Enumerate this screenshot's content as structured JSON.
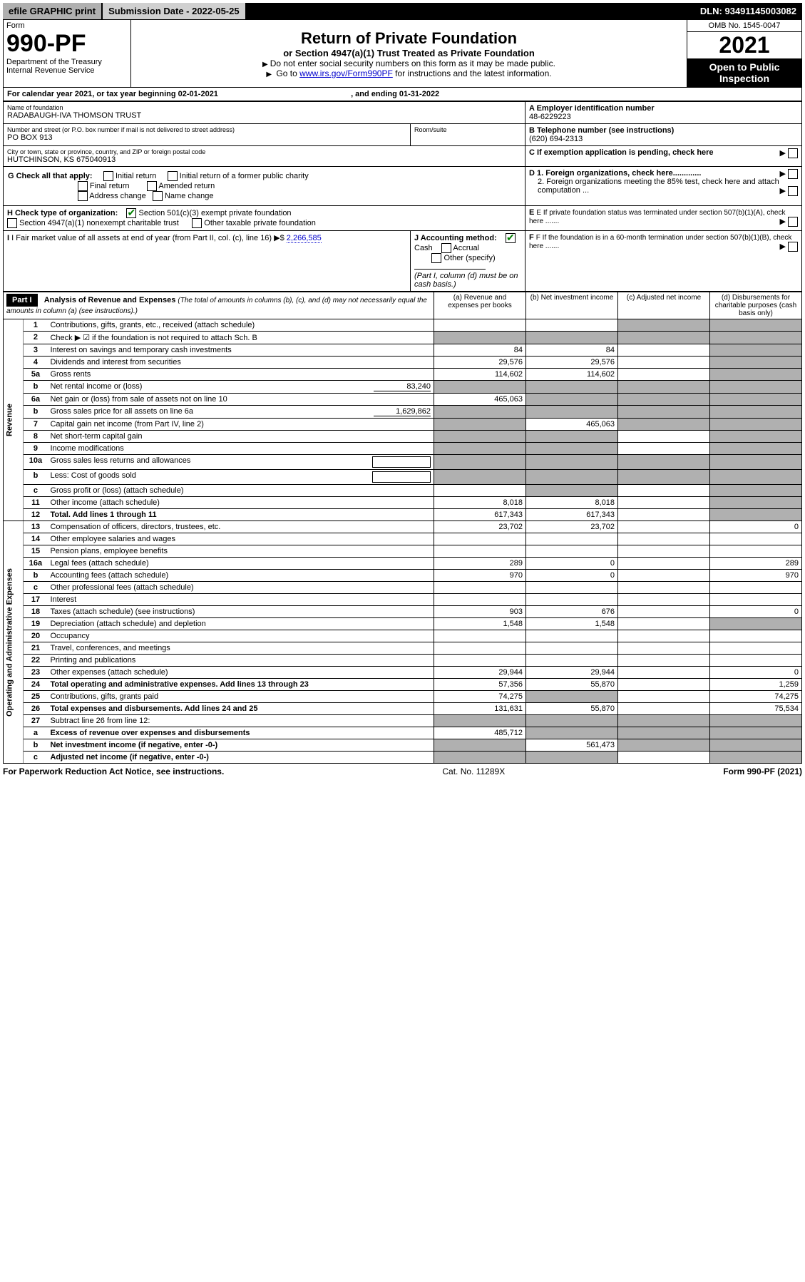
{
  "topbar": {
    "efile": "efile GRAPHIC print",
    "subdate_label": "Submission Date - 2022-05-25",
    "dln": "DLN: 93491145003082"
  },
  "header": {
    "form_label": "Form",
    "form_num": "990-PF",
    "dept": "Department of the Treasury",
    "irs": "Internal Revenue Service",
    "title": "Return of Private Foundation",
    "subtitle": "or Section 4947(a)(1) Trust Treated as Private Foundation",
    "instr1": "Do not enter social security numbers on this form as it may be made public.",
    "instr2_pre": "Go to ",
    "instr2_link": "www.irs.gov/Form990PF",
    "instr2_post": " for instructions and the latest information.",
    "omb": "OMB No. 1545-0047",
    "year": "2021",
    "open": "Open to Public Inspection"
  },
  "calendar": {
    "text_pre": "For calendar year 2021, or tax year beginning ",
    "begin": "02-01-2021",
    "text_mid": " , and ending ",
    "end": "01-31-2022"
  },
  "info": {
    "name_label": "Name of foundation",
    "name": "RADABAUGH-IVA THOMSON TRUST",
    "addr_label": "Number and street (or P.O. box number if mail is not delivered to street address)",
    "addr": "PO BOX 913",
    "room_label": "Room/suite",
    "city_label": "City or town, state or province, country, and ZIP or foreign postal code",
    "city": "HUTCHINSON, KS  675040913",
    "a_label": "A Employer identification number",
    "a_val": "48-6229223",
    "b_label": "B Telephone number (see instructions)",
    "b_val": "(620) 694-2313",
    "c_label": "C If exemption application is pending, check here",
    "d1_label": "D 1. Foreign organizations, check here.............",
    "d2_label": "2. Foreign organizations meeting the 85% test, check here and attach computation ...",
    "e_label": "E If private foundation status was terminated under section 507(b)(1)(A), check here .......",
    "f_label": "F If the foundation is in a 60-month termination under section 507(b)(1)(B), check here .......",
    "g_label": "G Check all that apply:",
    "g_opts": {
      "initial": "Initial return",
      "initial_former": "Initial return of a former public charity",
      "final": "Final return",
      "amended": "Amended return",
      "addr_change": "Address change",
      "name_change": "Name change"
    },
    "h_label": "H Check type of organization:",
    "h_opts": {
      "501c3": "Section 501(c)(3) exempt private foundation",
      "4947": "Section 4947(a)(1) nonexempt charitable trust",
      "other_tax": "Other taxable private foundation"
    },
    "i_label": "I Fair market value of all assets at end of year (from Part II, col. (c), line 16)",
    "i_val": "2,266,585",
    "j_label": "J Accounting method:",
    "j_cash": "Cash",
    "j_accrual": "Accrual",
    "j_other": "Other (specify)",
    "j_note": "(Part I, column (d) must be on cash basis.)"
  },
  "part1": {
    "label": "Part I",
    "title": "Analysis of Revenue and Expenses",
    "title_note": "(The total of amounts in columns (b), (c), and (d) may not necessarily equal the amounts in column (a) (see instructions).)",
    "col_a": "(a) Revenue and expenses per books",
    "col_b": "(b) Net investment income",
    "col_c": "(c) Adjusted net income",
    "col_d": "(d) Disbursements for charitable purposes (cash basis only)"
  },
  "sections": {
    "revenue": "Revenue",
    "expenses": "Operating and Administrative Expenses"
  },
  "rows": [
    {
      "n": "1",
      "desc": "Contributions, gifts, grants, etc., received (attach schedule)",
      "a": "",
      "b": "",
      "c": "shade",
      "d": "shade"
    },
    {
      "n": "2",
      "desc": "Check ▶ ☑ if the foundation is not required to attach Sch. B",
      "a": "shade",
      "b": "shade",
      "c": "shade",
      "d": "shade"
    },
    {
      "n": "3",
      "desc": "Interest on savings and temporary cash investments",
      "a": "84",
      "b": "84",
      "c": "",
      "d": "shade"
    },
    {
      "n": "4",
      "desc": "Dividends and interest from securities",
      "a": "29,576",
      "b": "29,576",
      "c": "",
      "d": "shade"
    },
    {
      "n": "5a",
      "desc": "Gross rents",
      "a": "114,602",
      "b": "114,602",
      "c": "",
      "d": "shade"
    },
    {
      "n": "b",
      "desc": "Net rental income or (loss)",
      "inline": "83,240",
      "a": "shade",
      "b": "shade",
      "c": "shade",
      "d": "shade"
    },
    {
      "n": "6a",
      "desc": "Net gain or (loss) from sale of assets not on line 10",
      "a": "465,063",
      "b": "shade",
      "c": "shade",
      "d": "shade"
    },
    {
      "n": "b",
      "desc": "Gross sales price for all assets on line 6a",
      "inline": "1,629,862",
      "a": "shade",
      "b": "shade",
      "c": "shade",
      "d": "shade"
    },
    {
      "n": "7",
      "desc": "Capital gain net income (from Part IV, line 2)",
      "a": "shade",
      "b": "465,063",
      "c": "shade",
      "d": "shade"
    },
    {
      "n": "8",
      "desc": "Net short-term capital gain",
      "a": "shade",
      "b": "shade",
      "c": "",
      "d": "shade"
    },
    {
      "n": "9",
      "desc": "Income modifications",
      "a": "shade",
      "b": "shade",
      "c": "",
      "d": "shade"
    },
    {
      "n": "10a",
      "desc": "Gross sales less returns and allowances",
      "inline_box": true,
      "a": "shade",
      "b": "shade",
      "c": "shade",
      "d": "shade"
    },
    {
      "n": "b",
      "desc": "Less: Cost of goods sold",
      "inline_box": true,
      "a": "shade",
      "b": "shade",
      "c": "shade",
      "d": "shade"
    },
    {
      "n": "c",
      "desc": "Gross profit or (loss) (attach schedule)",
      "a": "",
      "b": "shade",
      "c": "",
      "d": "shade"
    },
    {
      "n": "11",
      "desc": "Other income (attach schedule)",
      "a": "8,018",
      "b": "8,018",
      "c": "",
      "d": "shade"
    },
    {
      "n": "12",
      "desc": "Total. Add lines 1 through 11",
      "bold": true,
      "a": "617,343",
      "b": "617,343",
      "c": "",
      "d": "shade"
    },
    {
      "n": "13",
      "desc": "Compensation of officers, directors, trustees, etc.",
      "a": "23,702",
      "b": "23,702",
      "c": "",
      "d": "0"
    },
    {
      "n": "14",
      "desc": "Other employee salaries and wages",
      "a": "",
      "b": "",
      "c": "",
      "d": ""
    },
    {
      "n": "15",
      "desc": "Pension plans, employee benefits",
      "a": "",
      "b": "",
      "c": "",
      "d": ""
    },
    {
      "n": "16a",
      "desc": "Legal fees (attach schedule)",
      "a": "289",
      "b": "0",
      "c": "",
      "d": "289"
    },
    {
      "n": "b",
      "desc": "Accounting fees (attach schedule)",
      "a": "970",
      "b": "0",
      "c": "",
      "d": "970"
    },
    {
      "n": "c",
      "desc": "Other professional fees (attach schedule)",
      "a": "",
      "b": "",
      "c": "",
      "d": ""
    },
    {
      "n": "17",
      "desc": "Interest",
      "a": "",
      "b": "",
      "c": "",
      "d": ""
    },
    {
      "n": "18",
      "desc": "Taxes (attach schedule) (see instructions)",
      "a": "903",
      "b": "676",
      "c": "",
      "d": "0"
    },
    {
      "n": "19",
      "desc": "Depreciation (attach schedule) and depletion",
      "a": "1,548",
      "b": "1,548",
      "c": "",
      "d": "shade"
    },
    {
      "n": "20",
      "desc": "Occupancy",
      "a": "",
      "b": "",
      "c": "",
      "d": ""
    },
    {
      "n": "21",
      "desc": "Travel, conferences, and meetings",
      "a": "",
      "b": "",
      "c": "",
      "d": ""
    },
    {
      "n": "22",
      "desc": "Printing and publications",
      "a": "",
      "b": "",
      "c": "",
      "d": ""
    },
    {
      "n": "23",
      "desc": "Other expenses (attach schedule)",
      "a": "29,944",
      "b": "29,944",
      "c": "",
      "d": "0"
    },
    {
      "n": "24",
      "desc": "Total operating and administrative expenses. Add lines 13 through 23",
      "bold": true,
      "a": "57,356",
      "b": "55,870",
      "c": "",
      "d": "1,259"
    },
    {
      "n": "25",
      "desc": "Contributions, gifts, grants paid",
      "a": "74,275",
      "b": "shade",
      "c": "",
      "d": "74,275"
    },
    {
      "n": "26",
      "desc": "Total expenses and disbursements. Add lines 24 and 25",
      "bold": true,
      "a": "131,631",
      "b": "55,870",
      "c": "",
      "d": "75,534"
    },
    {
      "n": "27",
      "desc": "Subtract line 26 from line 12:",
      "a": "shade",
      "b": "shade",
      "c": "shade",
      "d": "shade"
    },
    {
      "n": "a",
      "desc": "Excess of revenue over expenses and disbursements",
      "bold": true,
      "a": "485,712",
      "b": "shade",
      "c": "shade",
      "d": "shade"
    },
    {
      "n": "b",
      "desc": "Net investment income (if negative, enter -0-)",
      "bold": true,
      "a": "shade",
      "b": "561,473",
      "c": "shade",
      "d": "shade"
    },
    {
      "n": "c",
      "desc": "Adjusted net income (if negative, enter -0-)",
      "bold": true,
      "a": "shade",
      "b": "shade",
      "c": "",
      "d": "shade"
    }
  ],
  "footer": {
    "left": "For Paperwork Reduction Act Notice, see instructions.",
    "mid": "Cat. No. 11289X",
    "right": "Form 990-PF (2021)"
  }
}
